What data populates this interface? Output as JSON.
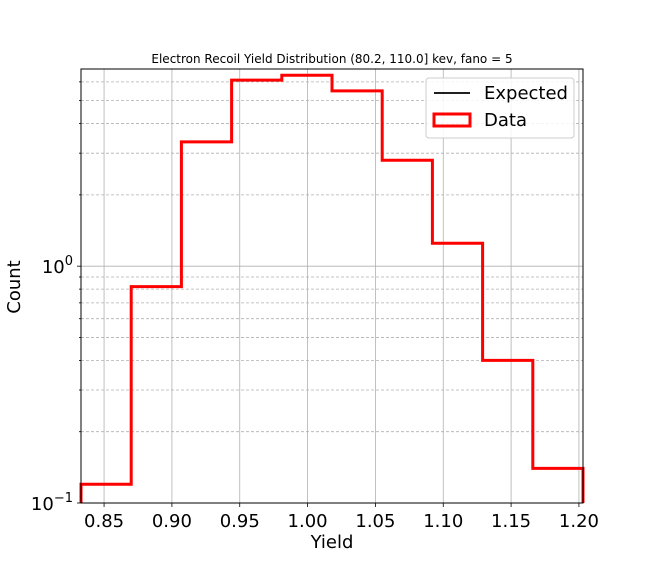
{
  "chart_data": {
    "type": "histogram",
    "title": "Electron Recoil Yield Distribution (80.2, 110.0] kev, fano = 5",
    "xlabel": "Yield",
    "ylabel": "Count",
    "xlim": [
      0.833,
      1.203
    ],
    "ylim": [
      0.1,
      6.8
    ],
    "yscale": "log",
    "grid": true,
    "legend_position": "top-right",
    "x_ticks": [
      0.85,
      0.9,
      0.95,
      1.0,
      1.05,
      1.1,
      1.15,
      1.2
    ],
    "x_tick_labels": [
      "0.85",
      "0.90",
      "0.95",
      "1.00",
      "1.05",
      "1.10",
      "1.15",
      "1.20"
    ],
    "y_ticks": [
      {
        "value": 0.1,
        "base": "10",
        "exp": "−1"
      },
      {
        "value": 1,
        "base": "10",
        "exp": "0"
      }
    ],
    "y_minor_ticks": [
      0.2,
      0.3,
      0.4,
      0.5,
      0.6,
      0.7,
      0.8,
      0.9,
      2,
      3,
      4,
      5,
      6
    ],
    "series": [
      {
        "name": "Expected",
        "type": "line",
        "color": "#000000",
        "values": []
      },
      {
        "name": "Data",
        "type": "step-histogram",
        "color": "#ff0000",
        "bin_edges": [
          0.833,
          0.87,
          0.907,
          0.944,
          0.981,
          1.018,
          1.055,
          1.092,
          1.129,
          1.166,
          1.203
        ],
        "counts": [
          0.12,
          0.82,
          3.35,
          6.1,
          6.4,
          5.5,
          2.8,
          1.25,
          0.4,
          0.14
        ]
      }
    ]
  }
}
